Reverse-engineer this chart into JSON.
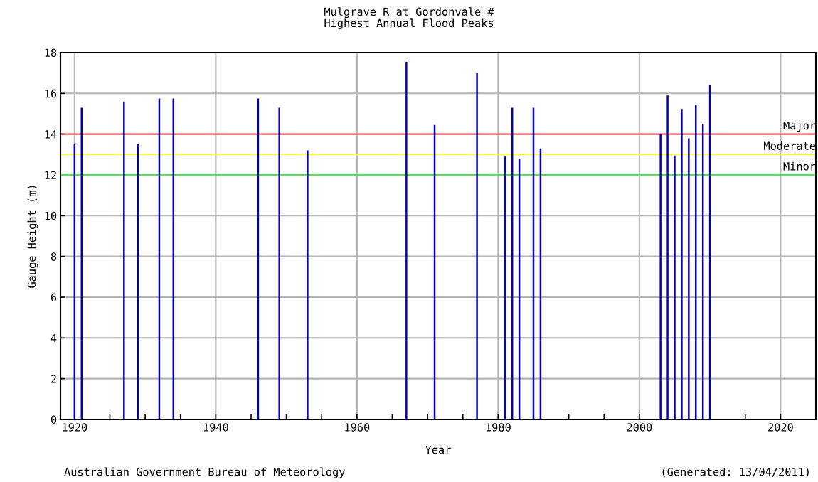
{
  "chart_data": {
    "type": "bar",
    "title": "Mulgrave R at Gordonvale #\nHighest Annual Flood Peaks",
    "xlabel": "Year",
    "ylabel": "Gauge Height (m)",
    "x": [
      1920,
      1921,
      1927,
      1929,
      1932,
      1934,
      1946,
      1949,
      1953,
      1967,
      1971,
      1977,
      1981,
      1982,
      1983,
      1985,
      1986,
      2003,
      2004,
      2005,
      2006,
      2007,
      2008,
      2009,
      2010
    ],
    "values": [
      13.5,
      15.3,
      15.6,
      13.5,
      15.75,
      15.75,
      15.75,
      15.3,
      13.2,
      17.55,
      14.45,
      17.0,
      12.9,
      15.3,
      12.8,
      15.3,
      13.3,
      14.0,
      15.9,
      12.95,
      15.2,
      13.8,
      15.45,
      14.5,
      16.4
    ],
    "color": "#0000bb",
    "xlim": [
      1918,
      2025
    ],
    "xticks": [
      1920,
      {
        "value": 1925,
        "label": null
      },
      {
        "value": 1930,
        "label": null
      },
      {
        "value": 1935,
        "label": null
      },
      1940,
      {
        "value": 1945,
        "label": null
      },
      {
        "value": 1950,
        "label": null
      },
      {
        "value": 1955,
        "label": null
      },
      1960,
      {
        "value": 1965,
        "label": null
      },
      {
        "value": 1970,
        "label": null
      },
      {
        "value": 1975,
        "label": null
      },
      1980,
      {
        "value": 1985,
        "label": null
      },
      {
        "value": 1990,
        "label": null
      },
      {
        "value": 1995,
        "label": null
      },
      2000,
      {
        "value": 2005,
        "label": null
      },
      {
        "value": 2010,
        "label": null
      },
      {
        "value": 2015,
        "label": null
      },
      2020
    ],
    "ylim": [
      0,
      18
    ],
    "yticks": [
      0,
      2,
      4,
      6,
      8,
      10,
      12,
      14,
      16,
      18
    ],
    "grid": true,
    "ref_lines": [
      {
        "axis": "y",
        "value": 14,
        "label": "Major",
        "color": "#ff7070"
      },
      {
        "axis": "y",
        "value": 13,
        "label": "Moderate",
        "color": "#ffff33"
      },
      {
        "axis": "y",
        "value": 12,
        "label": "Minor",
        "color": "#44ee44"
      }
    ],
    "annotations": [
      "Australian Government Bureau of Meteorology",
      "(Generated: 13/04/2011)"
    ]
  }
}
